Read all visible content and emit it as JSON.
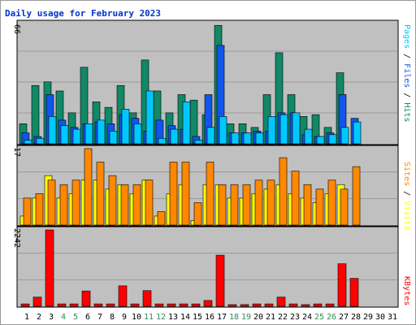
{
  "chart_data": {
    "type": "bar",
    "title": "Daily usage for February 2023",
    "x": [
      "1",
      "2",
      "3",
      "4",
      "5",
      "6",
      "7",
      "8",
      "9",
      "10",
      "11",
      "12",
      "13",
      "14",
      "15",
      "16",
      "17",
      "18",
      "19",
      "20",
      "21",
      "22",
      "23",
      "24",
      "25",
      "26",
      "27",
      "28",
      "29",
      "30",
      "31"
    ],
    "weekend_days": [
      "4",
      "5",
      "11",
      "12",
      "18",
      "19",
      "25",
      "26"
    ],
    "colors": {
      "weekday_label": "#000000",
      "weekend_label": "#2e8b57",
      "panel_bg": "#c0c0c0",
      "border_outer": "#999999"
    },
    "panels": [
      {
        "name": "top",
        "ymax_label": "66",
        "ymax": 66,
        "legend": [
          {
            "text": "Pages",
            "color": "#00c8ff"
          },
          {
            "text": " / ",
            "color": "#000000"
          },
          {
            "text": "Files",
            "color": "#1155ee"
          },
          {
            "text": " / ",
            "color": "#000000"
          },
          {
            "text": "Hits",
            "color": "#118866"
          }
        ],
        "series": [
          {
            "name": "Hits",
            "color": "#118866",
            "values": [
              11,
              32,
              34,
              29,
              17,
              42,
              23,
              20,
              32,
              17,
              46,
              29,
              17,
              27,
              24,
              16,
              65,
              11,
              11,
              9,
              27,
              50,
              27,
              15,
              16,
              9,
              39,
              null,
              null,
              null,
              null
            ]
          },
          {
            "name": "Files",
            "color": "#1155ee",
            "values": [
              6,
              4,
              27,
              13,
              9,
              11,
              12,
              11,
              16,
              14,
              7,
              13,
              10,
              8,
              4,
              27,
              54,
              6,
              6,
              7,
              7,
              17,
              17,
              5,
              4,
              6,
              27,
              14,
              null,
              null,
              null
            ]
          },
          {
            "name": "Pages",
            "color": "#00c8ff",
            "values": [
              2,
              3,
              15,
              10,
              8,
              11,
              13,
              7,
              19,
              11,
              29,
              3,
              8,
              23,
              2,
              9,
              15,
              6,
              6,
              6,
              15,
              16,
              17,
              8,
              4,
              5,
              9,
              12,
              null,
              null,
              null
            ]
          }
        ]
      },
      {
        "name": "middle",
        "ymax_label": "17",
        "ymax": 17,
        "legend": [
          {
            "text": "Sites",
            "color": "#ff8800"
          },
          {
            "text": " / ",
            "color": "#000000"
          },
          {
            "text": "Visits",
            "color": "#ffff00"
          }
        ],
        "series": [
          {
            "name": "Visits",
            "color": "#ffff00",
            "values": [
              2,
              6,
              11,
              6,
              7,
              10,
              10,
              8,
              9,
              7,
              10,
              2,
              7,
              9,
              1,
              9,
              9,
              6,
              6,
              7,
              8,
              9,
              7,
              6,
              5,
              7,
              9,
              null,
              null,
              null,
              null
            ]
          },
          {
            "name": "Sites",
            "color": "#ff8800",
            "values": [
              6,
              7,
              10,
              9,
              10,
              17,
              14,
              11,
              9,
              9,
              10,
              3,
              14,
              14,
              5,
              14,
              9,
              9,
              9,
              10,
              10,
              15,
              12,
              9,
              8,
              10,
              8,
              13,
              null,
              null,
              null
            ]
          }
        ]
      },
      {
        "name": "bottom",
        "ymax_label": "2242",
        "ymax": 2242,
        "legend": [
          {
            "text": "KBytes",
            "color": "#ff0000"
          }
        ],
        "series": [
          {
            "name": "KBytes",
            "color": "#ff0000",
            "values": [
              70,
              270,
              2242,
              70,
              70,
              450,
              70,
              70,
              600,
              70,
              460,
              70,
              70,
              70,
              70,
              170,
              1500,
              50,
              50,
              70,
              70,
              270,
              70,
              50,
              70,
              70,
              1250,
              820,
              null,
              null,
              null
            ]
          }
        ]
      }
    ]
  }
}
